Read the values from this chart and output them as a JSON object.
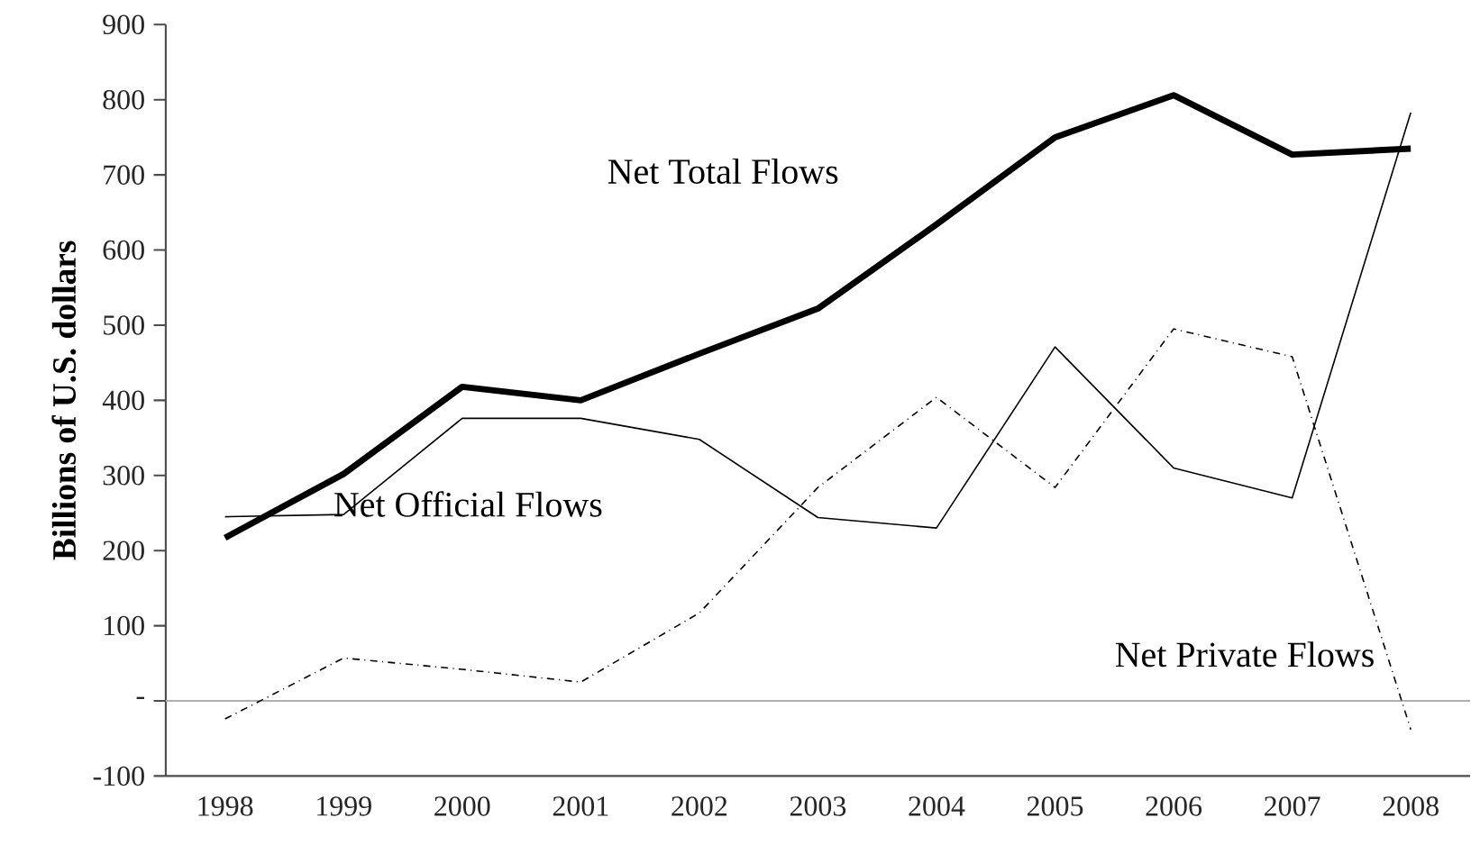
{
  "chart_data": {
    "type": "line",
    "ylabel": "Billions of U.S. dollars",
    "categories": [
      "1998",
      "1999",
      "2000",
      "2001",
      "2002",
      "2003",
      "2004",
      "2005",
      "2006",
      "2007",
      "2008"
    ],
    "series": [
      {
        "name": "Net Total Flows",
        "color": "#000000",
        "line_style": "solid",
        "values": [
          217,
          302,
          418,
          400,
          462,
          522,
          634,
          750,
          806,
          727,
          735
        ]
      },
      {
        "name": "Net Official Flows",
        "color": "#000000",
        "line_style": "solid",
        "values": [
          245,
          248,
          376,
          376,
          348,
          244,
          230,
          471,
          310,
          270,
          783
        ]
      },
      {
        "name": "Net Private Flows",
        "color": "#000000",
        "line_style": "dashdot",
        "values": [
          -24,
          57,
          42,
          25,
          117,
          284,
          404,
          284,
          495,
          458,
          -38
        ]
      }
    ],
    "ylim": [
      -100,
      900
    ],
    "yticks": [
      {
        "value": -100,
        "label": "-100"
      },
      {
        "value": 0,
        "label": "-"
      },
      100,
      200,
      300,
      400,
      500,
      600,
      700,
      800,
      900
    ],
    "ref_lines": [
      {
        "axis": "y",
        "value": 0,
        "color": "#b0b0b0"
      }
    ],
    "grid": false
  }
}
